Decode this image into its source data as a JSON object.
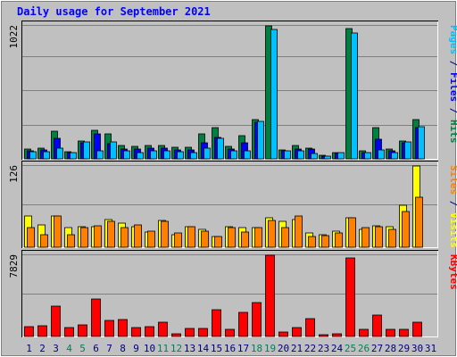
{
  "chart_data": {
    "type": "bar",
    "title": "Daily usage for September 2021",
    "categories": [
      "1",
      "2",
      "3",
      "4",
      "5",
      "6",
      "7",
      "8",
      "9",
      "10",
      "11",
      "12",
      "13",
      "14",
      "15",
      "16",
      "17",
      "18",
      "19",
      "20",
      "21",
      "22",
      "23",
      "24",
      "25",
      "26",
      "27",
      "28",
      "29",
      "30",
      "31"
    ],
    "weekend_days": [
      4,
      5,
      11,
      12,
      18,
      19,
      25,
      26
    ],
    "panels": [
      {
        "axis_label": "1022",
        "ymax": 1022,
        "right_label": [
          {
            "text": "Pages",
            "color": "#00c0ff"
          },
          {
            "text": " / ",
            "color": "#000080"
          },
          {
            "text": "Files",
            "color": "#0000ff"
          },
          {
            "text": " / ",
            "color": "#000080"
          },
          {
            "text": "Hits",
            "color": "#008040"
          }
        ],
        "series": [
          {
            "name": "Hits",
            "color": "#008040",
            "values": [
              75,
              85,
              215,
              55,
              140,
              220,
              190,
              100,
              95,
              100,
              100,
              90,
              90,
              190,
              240,
              95,
              175,
              305,
              1022,
              70,
              100,
              85,
              30,
              50,
              1000,
              65,
              240,
              75,
              135,
              305,
              0
            ]
          },
          {
            "name": "Files",
            "color": "#0000ff",
            "values": [
              60,
              70,
              160,
              45,
              125,
              190,
              120,
              75,
              75,
              80,
              80,
              70,
              70,
              125,
              165,
              75,
              125,
              280,
              0,
              60,
              75,
              75,
              20,
              40,
              0,
              50,
              150,
              60,
              125,
              240,
              0
            ]
          },
          {
            "name": "Pages",
            "color": "#00c0ff",
            "values": [
              55,
              55,
              80,
              50,
              130,
              65,
              130,
              65,
              50,
              60,
              60,
              55,
              50,
              85,
              160,
              60,
              65,
              285,
              995,
              65,
              60,
              40,
              20,
              45,
              970,
              45,
              70,
              50,
              130,
              250,
              0
            ]
          }
        ]
      },
      {
        "axis_label": "126",
        "ymax": 126,
        "right_label": [
          {
            "text": "Sites",
            "color": "#ff8000"
          },
          {
            "text": " / ",
            "color": "#000080"
          },
          {
            "text": "Visits",
            "color": "#ffff00"
          }
        ],
        "series": [
          {
            "name": "Visits",
            "color": "#ffff00",
            "values": [
              48,
              35,
              48,
              30,
              32,
              32,
              43,
              38,
              32,
              24,
              42,
              20,
              32,
              27,
              17,
              32,
              31,
              30,
              45,
              40,
              43,
              22,
              20,
              25,
              45,
              27,
              33,
              32,
              65,
              126,
              0
            ]
          },
          {
            "name": "Sites",
            "color": "#ff8000",
            "values": [
              30,
              20,
              48,
              20,
              30,
              33,
              40,
              30,
              35,
              25,
              40,
              22,
              32,
              25,
              17,
              30,
              23,
              30,
              42,
              30,
              48,
              17,
              18,
              22,
              45,
              30,
              32,
              28,
              55,
              77,
              0
            ]
          }
        ]
      },
      {
        "axis_label": "7829",
        "ymax": 7829,
        "right_label": [
          {
            "text": "KBytes",
            "color": "#ff0000"
          }
        ],
        "series": [
          {
            "name": "KBytes",
            "color": "#ff0000",
            "values": [
              950,
              1050,
              2950,
              850,
              1150,
              3650,
              1550,
              1600,
              900,
              950,
              1350,
              250,
              750,
              800,
              2550,
              650,
              2350,
              3300,
              7829,
              450,
              850,
              1700,
              180,
              280,
              7600,
              650,
              2100,
              650,
              650,
              1350,
              0
            ]
          }
        ]
      }
    ],
    "colors": {
      "background": "#c0c0c0",
      "grid": "#808080",
      "title": "#0000ff",
      "weekday_label": "#000080",
      "weekend_label": "#00805c"
    }
  }
}
